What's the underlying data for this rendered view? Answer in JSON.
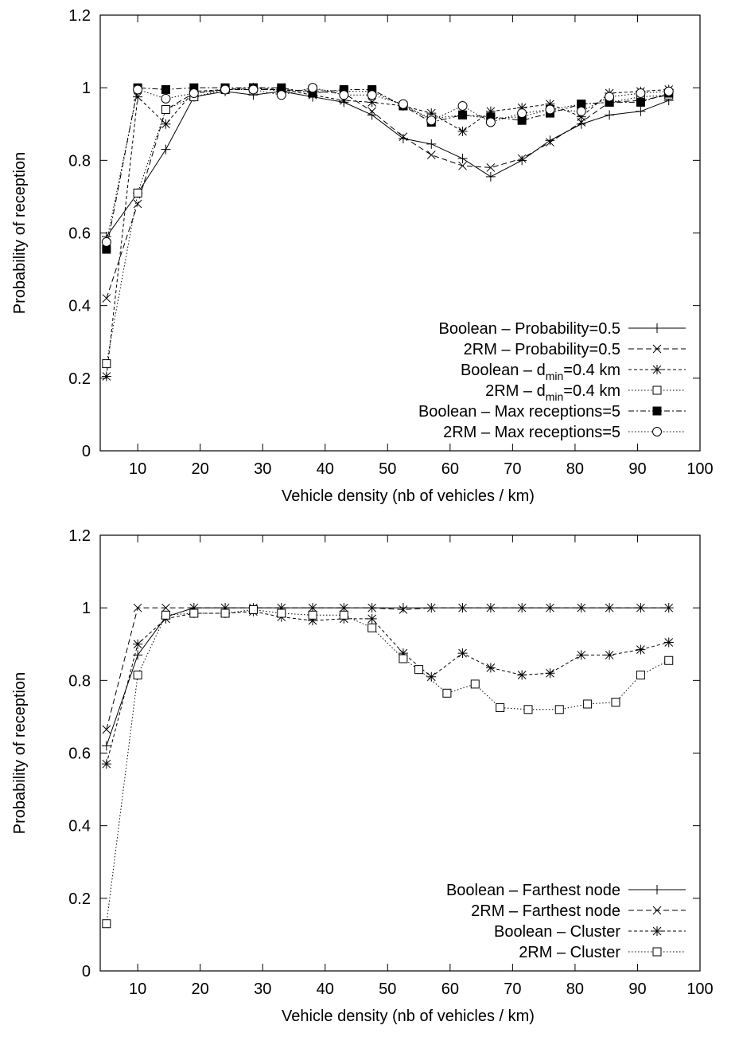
{
  "chart_data": [
    {
      "type": "line",
      "xlabel": "Vehicle density (nb of vehicles / km)",
      "ylabel": "Probability of reception",
      "xlim": [
        4,
        100
      ],
      "ylim": [
        0,
        1.2
      ],
      "xticks": [
        10,
        20,
        30,
        40,
        50,
        60,
        70,
        80,
        90,
        100
      ],
      "yticks": [
        0,
        0.2,
        0.4,
        0.6,
        0.8,
        1,
        1.2
      ],
      "grid": false,
      "legend_position": "bottom-right",
      "series": [
        {
          "name": "Boolean – Probability=0.5",
          "marker": "plus",
          "dash": "",
          "x": [
            5,
            10,
            14.5,
            19,
            24,
            28.5,
            33,
            38,
            43,
            47.5,
            52.5,
            57,
            62,
            66.5,
            71.5,
            76,
            81,
            85.5,
            90.5,
            95
          ],
          "y": [
            0.59,
            0.71,
            0.83,
            0.975,
            0.99,
            0.98,
            0.99,
            0.975,
            0.96,
            0.925,
            0.86,
            0.845,
            0.805,
            0.755,
            0.8,
            0.855,
            0.9,
            0.925,
            0.935,
            0.965
          ]
        },
        {
          "name": "2RM – Probability=0.5",
          "marker": "cross",
          "dash": "7,4",
          "x": [
            5,
            10,
            14.5,
            19,
            24,
            28.5,
            33,
            38,
            43,
            47.5,
            52.5,
            57,
            62,
            66.5,
            71.5,
            76,
            81,
            85.5,
            90.5,
            95
          ],
          "y": [
            0.42,
            0.68,
            0.94,
            0.985,
            0.995,
            0.995,
            0.995,
            0.99,
            0.985,
            0.935,
            0.865,
            0.815,
            0.785,
            0.78,
            0.805,
            0.85,
            0.905,
            0.96,
            0.965,
            0.98
          ]
        },
        {
          "name": "Boolean – dmin=0.4 km",
          "marker": "asterisk",
          "dash": "4,3",
          "x": [
            5,
            10,
            14.5,
            19,
            24,
            28.5,
            33,
            38,
            43,
            47.5,
            52.5,
            57,
            62,
            66.5,
            71.5,
            76,
            81,
            85.5,
            90.5,
            95
          ],
          "y": [
            0.205,
            0.975,
            0.9,
            0.99,
            0.995,
            1.0,
            0.995,
            0.98,
            0.965,
            0.96,
            0.95,
            0.93,
            0.88,
            0.935,
            0.945,
            0.955,
            0.92,
            0.985,
            0.99,
            0.995
          ]
        },
        {
          "name": "2RM – dmin=0.4 km",
          "marker": "open-square",
          "dash": "1.5,2.5",
          "x": [
            5,
            10,
            14.5,
            19,
            24,
            28.5,
            33,
            38,
            43,
            47.5,
            52.5,
            57,
            62,
            66.5,
            71.5,
            76,
            81,
            85.5,
            90.5,
            95
          ],
          "y": [
            0.24,
            0.71,
            0.94,
            0.975,
            0.995,
            1.0,
            0.99,
            0.995,
            0.99,
            0.99,
            0.95,
            0.915,
            0.925,
            0.915,
            0.92,
            0.94,
            0.955,
            0.96,
            0.975,
            0.98
          ]
        },
        {
          "name": "Boolean – Max receptions=5",
          "marker": "filled-square",
          "dash": "7,3,2,3",
          "x": [
            5,
            10,
            14.5,
            19,
            24,
            28.5,
            33,
            38,
            43,
            47.5,
            52.5,
            57,
            62,
            66.5,
            71.5,
            76,
            81,
            85.5,
            90.5,
            95
          ],
          "y": [
            0.555,
            1.0,
            0.995,
            1.0,
            1.0,
            1.0,
            1.0,
            0.985,
            0.995,
            0.995,
            0.95,
            0.905,
            0.925,
            0.92,
            0.91,
            0.93,
            0.955,
            0.96,
            0.96,
            0.985
          ]
        },
        {
          "name": "2RM – Max receptions=5",
          "marker": "open-circle",
          "dash": "1.5,2.5",
          "x": [
            5,
            10,
            14.5,
            19,
            24,
            28.5,
            33,
            38,
            43,
            47.5,
            52.5,
            57,
            62,
            66.5,
            71.5,
            76,
            81,
            85.5,
            90.5,
            95
          ],
          "y": [
            0.575,
            0.995,
            0.97,
            0.985,
            0.995,
            0.995,
            0.98,
            1.0,
            0.98,
            0.98,
            0.955,
            0.91,
            0.95,
            0.905,
            0.93,
            0.94,
            0.935,
            0.975,
            0.985,
            0.99
          ]
        }
      ]
    },
    {
      "type": "line",
      "xlabel": "Vehicle density (nb of vehicles / km)",
      "ylabel": "Probability of reception",
      "xlim": [
        4,
        100
      ],
      "ylim": [
        0,
        1.2
      ],
      "xticks": [
        10,
        20,
        30,
        40,
        50,
        60,
        70,
        80,
        90,
        100
      ],
      "yticks": [
        0,
        0.2,
        0.4,
        0.6,
        0.8,
        1,
        1.2
      ],
      "grid": false,
      "legend_position": "bottom-right",
      "series": [
        {
          "name": "Boolean – Farthest node",
          "marker": "plus",
          "dash": "",
          "x": [
            5,
            10,
            14.5,
            19,
            24,
            28.5,
            33,
            38,
            43,
            47.5,
            52.5,
            57,
            62,
            66.5,
            71.5,
            76,
            81,
            85.5,
            90.5,
            95
          ],
          "y": [
            0.62,
            0.87,
            0.975,
            1.0,
            1.0,
            1.0,
            1.0,
            1.0,
            1.0,
            1.0,
            1.0,
            1.0,
            1.0,
            1.0,
            1.0,
            1.0,
            1.0,
            1.0,
            1.0,
            1.0
          ]
        },
        {
          "name": "2RM – Farthest node",
          "marker": "cross",
          "dash": "7,4",
          "x": [
            5,
            10,
            14.5,
            19,
            24,
            28.5,
            33,
            38,
            43,
            47.5,
            52.5,
            57,
            62,
            66.5,
            71.5,
            76,
            81,
            85.5,
            90.5,
            95
          ],
          "y": [
            0.665,
            1.0,
            1.0,
            1.0,
            1.0,
            1.0,
            1.0,
            1.0,
            1.0,
            1.0,
            0.995,
            1.0,
            1.0,
            1.0,
            1.0,
            1.0,
            1.0,
            1.0,
            1.0,
            1.0
          ]
        },
        {
          "name": "Boolean – Cluster",
          "marker": "asterisk",
          "dash": "4,3",
          "x": [
            5,
            10,
            14.5,
            19,
            24,
            28.5,
            33,
            38,
            43,
            47.5,
            52.5,
            57,
            62,
            66.5,
            71.5,
            76,
            81,
            85.5,
            90.5,
            95
          ],
          "y": [
            0.57,
            0.9,
            0.97,
            0.985,
            0.985,
            0.99,
            0.975,
            0.965,
            0.97,
            0.97,
            0.875,
            0.81,
            0.875,
            0.835,
            0.815,
            0.82,
            0.87,
            0.87,
            0.885,
            0.905
          ]
        },
        {
          "name": "2RM – Cluster",
          "marker": "open-square",
          "dash": "1.5,2.5",
          "x": [
            5,
            10,
            14.5,
            19,
            24,
            28.5,
            33,
            38,
            43,
            47.5,
            52.5,
            55,
            59.5,
            64,
            68,
            72.5,
            77.5,
            82,
            86.5,
            90.5,
            95
          ],
          "y": [
            0.13,
            0.815,
            0.98,
            0.985,
            0.985,
            0.995,
            0.985,
            0.98,
            0.98,
            0.945,
            0.86,
            0.83,
            0.765,
            0.79,
            0.725,
            0.72,
            0.72,
            0.735,
            0.74,
            0.815,
            0.855
          ]
        }
      ]
    }
  ]
}
